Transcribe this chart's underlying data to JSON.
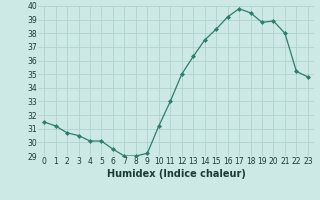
{
  "x": [
    0,
    1,
    2,
    3,
    4,
    5,
    6,
    7,
    8,
    9,
    10,
    11,
    12,
    13,
    14,
    15,
    16,
    17,
    18,
    19,
    20,
    21,
    22,
    23
  ],
  "y": [
    31.5,
    31.2,
    30.7,
    30.5,
    30.1,
    30.1,
    29.5,
    29.0,
    29.0,
    29.2,
    31.2,
    33.0,
    35.0,
    36.3,
    37.5,
    38.3,
    39.2,
    39.8,
    39.5,
    38.8,
    38.9,
    38.0,
    35.2,
    34.8
  ],
  "xlabel": "Humidex (Indice chaleur)",
  "ylim": [
    29,
    40
  ],
  "xlim": [
    -0.5,
    23.5
  ],
  "yticks": [
    29,
    30,
    31,
    32,
    33,
    34,
    35,
    36,
    37,
    38,
    39,
    40
  ],
  "xticks": [
    0,
    1,
    2,
    3,
    4,
    5,
    6,
    7,
    8,
    9,
    10,
    11,
    12,
    13,
    14,
    15,
    16,
    17,
    18,
    19,
    20,
    21,
    22,
    23
  ],
  "line_color": "#2e7d6e",
  "bg_color": "#cce9e5",
  "grid_color": "#aacfca",
  "text_color": "#1a3a36",
  "xlabel_fontsize": 7,
  "tick_fontsize": 5.5
}
